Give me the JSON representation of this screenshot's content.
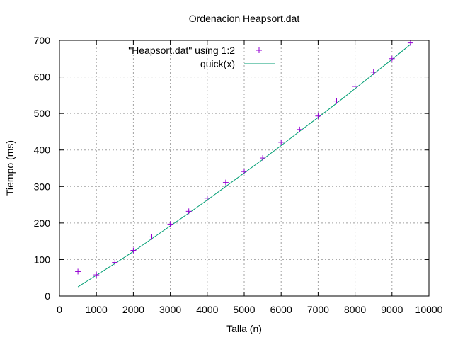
{
  "chart_data": {
    "type": "scatter",
    "title": "Ordenacion Heapsort.dat",
    "xlabel": "Talla (n)",
    "ylabel": "Tiempo (ms)",
    "xlim": [
      0,
      10000
    ],
    "ylim": [
      0,
      700
    ],
    "xticks": [
      0,
      1000,
      2000,
      3000,
      4000,
      5000,
      6000,
      7000,
      8000,
      9000,
      10000
    ],
    "yticks": [
      0,
      100,
      200,
      300,
      400,
      500,
      600,
      700
    ],
    "grid": true,
    "legend_position": "top-center",
    "series": [
      {
        "name": "\"Heapsort.dat\" using 1:2",
        "kind": "points",
        "marker": "plus",
        "color": "#9400d3",
        "x": [
          500,
          1000,
          1500,
          2000,
          2500,
          3000,
          3500,
          4000,
          4500,
          5000,
          5500,
          6000,
          6500,
          7000,
          7500,
          8000,
          8500,
          9000,
          9500
        ],
        "y": [
          67,
          58,
          92,
          125,
          162,
          197,
          232,
          268,
          311,
          341,
          378,
          421,
          456,
          493,
          534,
          574,
          613,
          650,
          693
        ]
      },
      {
        "name": "quick(x)",
        "kind": "line",
        "color": "#009e73",
        "x": [
          500,
          1000,
          1500,
          2000,
          2500,
          3000,
          3500,
          4000,
          4500,
          5000,
          5500,
          6000,
          6500,
          7000,
          7500,
          8000,
          8500,
          9000,
          9500
        ],
        "y": [
          25,
          57,
          89,
          122,
          157,
          192,
          227,
          263,
          300,
          337,
          374,
          412,
          451,
          489,
          528,
          568,
          608,
          648,
          689
        ]
      }
    ]
  }
}
